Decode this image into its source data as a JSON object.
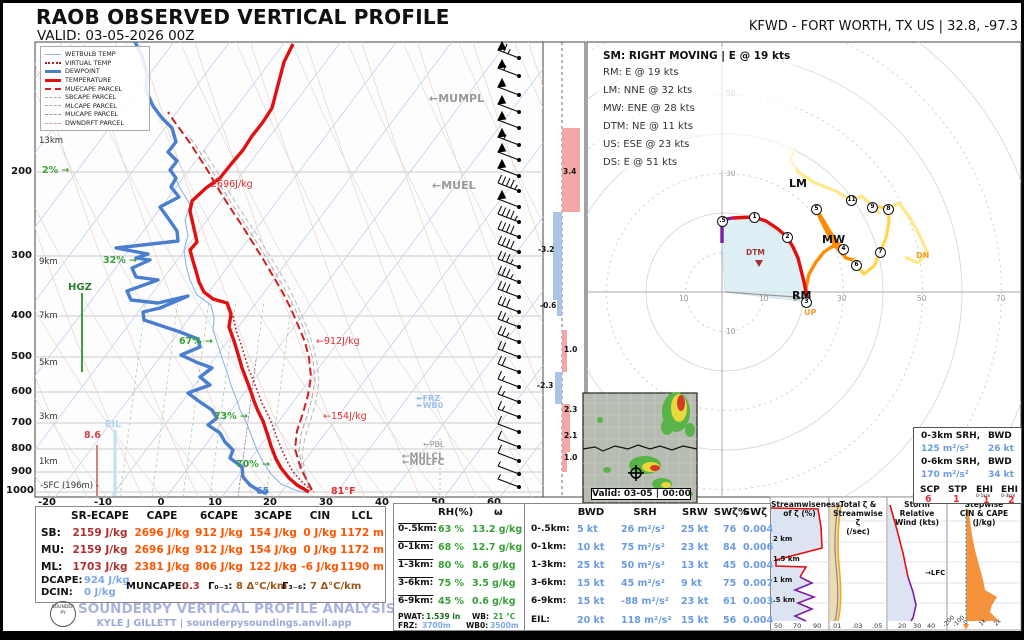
{
  "header": {
    "title": "RAOB OBSERVED VERTICAL PROFILE",
    "valid": "VALID: 03-05-2026 00Z",
    "station": "KFWD - FORT WORTH, TX US | 32.8, -97.3"
  },
  "legend": {
    "items": [
      "WETBULB TEMP",
      "VIRTUAL TEMP",
      "DEWPOINT",
      "TEMPERATURE",
      "MUECAPE PARCEL",
      "SBCAPE PARCEL",
      "MLCAPE PARCEL",
      "MUCAPE PARCEL",
      "DWNDRFT PARCEL"
    ]
  },
  "skewt": {
    "pressures": [
      "200",
      "300",
      "400",
      "500",
      "600",
      "700",
      "800",
      "900",
      "1000"
    ],
    "heights": [
      "13km",
      "9km",
      "7km",
      "5km",
      "3km",
      "1km"
    ],
    "sfc": "-SFC (196m) -",
    "temps": [
      "-20",
      "-10",
      "0",
      "10",
      "20",
      "30",
      "40",
      "50",
      "60"
    ],
    "rh": [
      "2% →",
      "32% →",
      "67% →",
      "73% →",
      "70% →"
    ],
    "ann": {
      "hgz": "HGZ",
      "eil": "EIL",
      "wbz": "8.6",
      "mucape": "2696J/kg",
      "cape6": "←912J/kg",
      "cape3": "←154J/kg",
      "mumpl": "←MUMPL",
      "muel": "←MUEL",
      "pbl": "←PBL",
      "mulcl": "←MULCL",
      "mulfc": "←MULFC",
      "frz": "↞FRZ",
      "wb0": "↞WB0",
      "sfc_td": "65",
      "sfc_t": "81°F"
    }
  },
  "omega": {
    "values": [
      "3.4",
      "-3.2",
      "-0.6",
      "1.0",
      "-2.3",
      "2.3",
      "2.1",
      "1.0"
    ]
  },
  "hodo": {
    "sm": "SM: RIGHT MOVING | E @ 19 kts",
    "vectors": [
      "RM: E @ 19 kts",
      "LM: NNE @ 32 kts",
      "MW: ENE @ 28 kts",
      "DTM: NE @ 11 kts",
      "US: ESE @ 23 kts",
      "DS: E @ 51 kts"
    ],
    "rings": [
      "10",
      "10",
      "30",
      "50",
      "70",
      "30",
      "50",
      "10"
    ],
    "pts": [
      ".5",
      "1",
      "2",
      "3",
      "4",
      "5",
      "6",
      "7",
      "8",
      "9",
      "11"
    ],
    "lm": "LM",
    "mw": "MW",
    "rm": "RM",
    "dtm": "DTM",
    "up": "UP",
    "dn": "DN",
    "stats": {
      "r1l": "0-3km SRH,",
      "r1r": "BWD",
      "v1l": "125 m²/s²",
      "v1r": "26 kt",
      "r2l": "0-6km SRH,",
      "r2r": "BWD",
      "v2l": "170 m²/s²",
      "v2r": "34 kt",
      "h": [
        "SCP",
        "STP",
        "EHI",
        "EHI"
      ],
      "sub": [
        "0-1km",
        "0-3km"
      ],
      "vals": [
        "6",
        "1",
        "1",
        "2"
      ]
    }
  },
  "radar": {
    "valid": "Valid: 03-05 | 00:00"
  },
  "thermo": {
    "headers": [
      "SR-ECAPE",
      "CAPE",
      "6CAPE",
      "3CAPE",
      "CIN",
      "LCL"
    ],
    "rows": [
      [
        "SB:",
        "2159 J/kg",
        "2696 J/kg",
        "912 J/kg",
        "154 J/kg",
        "0 J/kg",
        "1172 m"
      ],
      [
        "MU:",
        "2159 J/kg",
        "2696 J/kg",
        "912 J/kg",
        "154 J/kg",
        "0 J/kg",
        "1172 m"
      ],
      [
        "ML:",
        "1703 J/kg",
        "2381 J/kg",
        "806 J/kg",
        "122 J/kg",
        "-6 J/kg",
        "1190 m"
      ]
    ],
    "dcape_l": "DCAPE:",
    "dcape": "924 J/kg",
    "dcin_l": "DCIN:",
    "dcin": "0 J/kg",
    "muncape_l": "MUNCAPE:",
    "muncape": "0.3",
    "g03_l": "Γ₀₋₃:",
    "g03": "8 Δ°C/km",
    "g36_l": "Γ₃₋₆:",
    "g36": "7 Δ°C/km"
  },
  "moisture": {
    "h1": "RH(%)",
    "h2": "ω",
    "rows": [
      [
        "0-.5km:",
        "63 %",
        "13.2 g/kg"
      ],
      [
        "0-1km:",
        "68 %",
        "12.7 g/kg"
      ],
      [
        "1-3km:",
        "80 %",
        "8.6 g/kg"
      ],
      [
        "3-6km:",
        "75 %",
        "3.5 g/kg"
      ],
      [
        "6-9km:",
        "45 %",
        "0.6 g/kg"
      ]
    ],
    "pwat_l": "PWAT:",
    "pwat": "1.539 in",
    "wb_l": "WB:",
    "wb": "21 °C",
    "frz_l": "FRZ:",
    "frz": "3700m",
    "wb0_l": "WB0:",
    "wb0": "3500m"
  },
  "kin": {
    "headers": [
      "BWD",
      "SRH",
      "SRW",
      "SWζ%",
      "SWζ"
    ],
    "rows": [
      [
        "0-.5km:",
        "5 kt",
        "26 m²/s²",
        "25 kt",
        "76",
        "0.004"
      ],
      [
        "0-1km:",
        "10 kt",
        "75 m²/s²",
        "23 kt",
        "84",
        "0.006"
      ],
      [
        "1-3km:",
        "25 kt",
        "50 m²/s²",
        "13 kt",
        "45",
        "0.004"
      ],
      [
        "3-6km:",
        "15 kt",
        "45 m²/s²",
        "9 kt",
        "75",
        "0.007"
      ],
      [
        "6-9km:",
        "15 kt",
        "-88 m²/s²",
        "23 kt",
        "61",
        "0.003"
      ],
      [
        "EIL:",
        "20 kt",
        "118 m²/s²",
        "15 kt",
        "56",
        "0.004"
      ]
    ]
  },
  "footer": {
    "brand": "SOUNDERPY VERTICAL PROFILE ANALYSIS TOOL",
    "credit": "KYLE J GILLETT | sounderpysoundings.anvil.app",
    "logo": "SOUNDER\nPY"
  },
  "mini": {
    "c1": {
      "t": "Streamwiseness\nof ζ (%)",
      "ticks": [
        "50",
        "70",
        "90"
      ],
      "hl": [
        "2 km",
        "1.5 km",
        "1 km",
        ".5 km"
      ]
    },
    "c2": {
      "t": "Total ζ &\nStreamwise ζ\n(/sec)",
      "ticks": [
        ".01",
        ".03",
        ".05"
      ]
    },
    "c3": {
      "t": "Storm Relative\nWind (kts)",
      "ticks": [
        "20",
        "30",
        "40"
      ],
      "lfc": "→LFC"
    },
    "c4": {
      "t": "Stepwise\nCIN & CAPE\n(J/kg)",
      "ticks": [
        "-200",
        "-100",
        "0",
        "1k",
        "2k"
      ]
    }
  },
  "wind_barbs": [
    [
      58,
      65
    ],
    [
      76,
      55
    ],
    [
      95,
      50
    ],
    [
      112,
      50
    ],
    [
      128,
      50
    ],
    [
      145,
      55
    ],
    [
      160,
      50
    ],
    [
      176,
      50
    ],
    [
      191,
      45
    ],
    [
      207,
      50
    ],
    [
      222,
      45
    ],
    [
      237,
      40
    ],
    [
      252,
      40
    ],
    [
      267,
      35
    ],
    [
      282,
      35
    ],
    [
      297,
      30
    ],
    [
      312,
      30
    ],
    [
      327,
      25
    ],
    [
      342,
      25
    ],
    [
      357,
      20
    ],
    [
      372,
      20
    ],
    [
      387,
      15
    ],
    [
      402,
      15
    ],
    [
      417,
      15
    ],
    [
      432,
      10
    ],
    [
      447,
      10
    ],
    [
      461,
      10
    ],
    [
      474,
      5
    ],
    [
      487,
      5
    ]
  ],
  "chart_data": [
    {
      "type": "table",
      "title": "Parcel thermodynamics",
      "columns": [
        "parcel",
        "SR-ECAPE (J/kg)",
        "CAPE (J/kg)",
        "6CAPE (J/kg)",
        "3CAPE (J/kg)",
        "CIN (J/kg)",
        "LCL (m)"
      ],
      "rows": [
        [
          "SB",
          2159,
          2696,
          912,
          154,
          0,
          1172
        ],
        [
          "MU",
          2159,
          2696,
          912,
          154,
          0,
          1172
        ],
        [
          "ML",
          1703,
          2381,
          806,
          122,
          -6,
          1190
        ]
      ],
      "extras": {
        "DCAPE": "924 J/kg",
        "DCIN": "0 J/kg",
        "MUNCAPE": 0.3,
        "lapse_0_3km": "8 Δ°C/km",
        "lapse_3_6km": "7 Δ°C/km"
      }
    },
    {
      "type": "table",
      "title": "Moisture",
      "columns": [
        "layer",
        "RH %",
        "mixing ratio g/kg"
      ],
      "rows": [
        [
          "0-.5km",
          63,
          13.2
        ],
        [
          "0-1km",
          68,
          12.7
        ],
        [
          "1-3km",
          80,
          8.6
        ],
        [
          "3-6km",
          75,
          3.5
        ],
        [
          "6-9km",
          45,
          0.6
        ]
      ],
      "extras": {
        "PWAT": "1.539 in",
        "WB": "21 °C",
        "FRZ": "3700m",
        "WB0": "3500m"
      }
    },
    {
      "type": "table",
      "title": "Kinematics",
      "columns": [
        "layer",
        "BWD (kt)",
        "SRH (m²/s²)",
        "SRW (kt)",
        "SWζ%",
        "SWζ"
      ],
      "rows": [
        [
          "0-.5km",
          5,
          26,
          25,
          76,
          0.004
        ],
        [
          "0-1km",
          10,
          75,
          23,
          84,
          0.006
        ],
        [
          "1-3km",
          25,
          50,
          13,
          45,
          0.004
        ],
        [
          "3-6km",
          15,
          45,
          9,
          75,
          0.007
        ],
        [
          "6-9km",
          15,
          -88,
          23,
          61,
          0.003
        ],
        [
          "EIL",
          20,
          118,
          15,
          56,
          0.004
        ]
      ]
    },
    {
      "type": "table",
      "title": "Storm motion vectors",
      "rows": [
        [
          "SM",
          "RIGHT MOVING | E @ 19 kts"
        ],
        [
          "RM",
          "E @ 19 kts"
        ],
        [
          "LM",
          "NNE @ 32 kts"
        ],
        [
          "MW",
          "ENE @ 28 kts"
        ],
        [
          "DTM",
          "NE @ 11 kts"
        ],
        [
          "US",
          "ESE @ 23 kts"
        ],
        [
          "DS",
          "E @ 51 kts"
        ]
      ]
    },
    {
      "type": "table",
      "title": "Hodograph composite indices",
      "rows": [
        [
          "0-3km SRH",
          "125 m²/s²"
        ],
        [
          "0-3km BWD",
          "26 kt"
        ],
        [
          "0-6km SRH",
          "170 m²/s²"
        ],
        [
          "0-6km BWD",
          "34 kt"
        ],
        [
          "SCP",
          6
        ],
        [
          "STP",
          1
        ],
        [
          "EHI 0-1km",
          1
        ],
        [
          "EHI 0-3km",
          2
        ]
      ]
    },
    {
      "type": "bar",
      "title": "Omega (ω) labeled bars, top to bottom",
      "values": [
        3.4,
        -3.2,
        -0.6,
        1.0,
        -2.3,
        2.3,
        2.1,
        1.0
      ]
    },
    {
      "type": "table",
      "title": "Surface / levels",
      "rows": [
        [
          "sfc temp",
          "81°F"
        ],
        [
          "sfc dewpoint",
          "65"
        ],
        [
          "station elev",
          "196 m"
        ],
        [
          "FRZ",
          "3700m"
        ],
        [
          "WB0",
          "3500m"
        ],
        [
          "wet bulb",
          "21 °C"
        ],
        [
          "sfc wbz line",
          "8.6"
        ],
        [
          "MUCAPE label on chart",
          "2696J/kg"
        ],
        [
          "6CAPE label",
          "912J/kg"
        ],
        [
          "3CAPE label",
          "154J/kg"
        ]
      ]
    }
  ]
}
